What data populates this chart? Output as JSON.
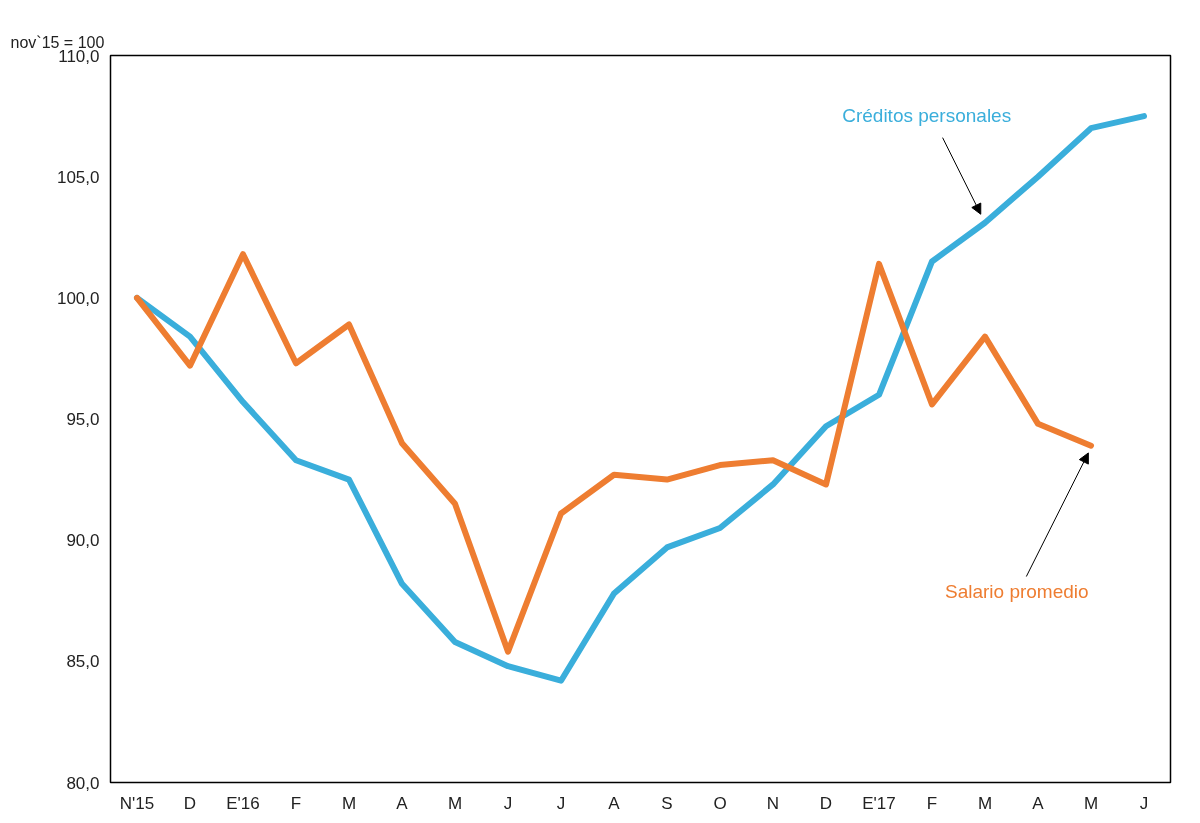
{
  "chart_data": {
    "type": "line",
    "ylabel": "nov`15 = 100",
    "categories": [
      "N'15",
      "D",
      "E'16",
      "F",
      "M",
      "A",
      "M",
      "J",
      "J",
      "A",
      "S",
      "O",
      "N",
      "D",
      "E'17",
      "F",
      "M",
      "A",
      "M",
      "J"
    ],
    "series": [
      {
        "name": "Créditos personales",
        "color": "#3aaedb",
        "values": [
          100.0,
          98.4,
          95.7,
          93.3,
          92.5,
          88.2,
          85.8,
          84.8,
          84.2,
          87.8,
          89.7,
          90.5,
          92.3,
          94.7,
          96.0,
          101.5,
          103.1,
          105.0,
          107.0,
          107.5
        ]
      },
      {
        "name": "Salario promedio",
        "color": "#ee7d31",
        "values": [
          100.0,
          97.2,
          101.8,
          97.3,
          98.9,
          94.0,
          91.5,
          85.4,
          91.1,
          92.7,
          92.5,
          93.1,
          93.3,
          92.3,
          101.4,
          95.6,
          98.4,
          94.8,
          93.9,
          null
        ]
      }
    ],
    "ylim": [
      80,
      110
    ],
    "yticks": [
      {
        "value": 80,
        "label": "80,0"
      },
      {
        "value": 85,
        "label": "85,0"
      },
      {
        "value": 90,
        "label": "90,0"
      },
      {
        "value": 95,
        "label": "95,0"
      },
      {
        "value": 100,
        "label": "100,0"
      },
      {
        "value": 105,
        "label": "105,0"
      },
      {
        "value": 110,
        "label": "110,0"
      }
    ],
    "grid": false,
    "marker": "none",
    "line_style": "solid"
  }
}
